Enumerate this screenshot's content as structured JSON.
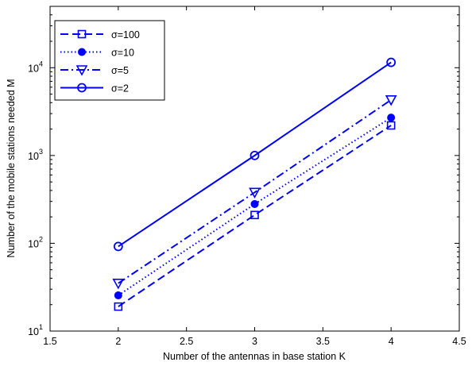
{
  "chart_data": {
    "type": "line",
    "title": "",
    "xlabel": "Number of the antennas in base station K",
    "ylabel": "Number of the mobile stations needed M",
    "xlim": [
      1.5,
      4.5
    ],
    "ylim": [
      10,
      50000
    ],
    "yscale": "log",
    "grid": false,
    "legend_position": "top-left",
    "x_ticks": [
      "1.5",
      "2",
      "2.5",
      "3",
      "3.5",
      "4",
      "4.5"
    ],
    "x_tick_values": [
      1.5,
      2,
      2.5,
      3,
      3.5,
      4,
      4.5
    ],
    "y_ticks": [
      {
        "base": "10",
        "exp": "1"
      },
      {
        "base": "10",
        "exp": "2"
      },
      {
        "base": "10",
        "exp": "3"
      },
      {
        "base": "10",
        "exp": "4"
      }
    ],
    "y_tick_values": [
      10,
      100,
      1000,
      10000
    ],
    "x": [
      2,
      3,
      4
    ],
    "series": [
      {
        "name": "σ=100",
        "values": [
          19,
          210,
          2200
        ],
        "color": "#0000ff",
        "line_style": "dashed",
        "marker": "square"
      },
      {
        "name": "σ=10",
        "values": [
          25.5,
          280,
          2700
        ],
        "color": "#0000ff",
        "line_style": "dotted",
        "marker": "filled-circle"
      },
      {
        "name": "σ=5",
        "values": [
          35,
          380,
          4300
        ],
        "color": "#0000ff",
        "line_style": "dash-dot",
        "marker": "triangle-down"
      },
      {
        "name": "σ=2",
        "values": [
          92,
          1000,
          11500
        ],
        "color": "#0000ff",
        "line_style": "solid",
        "marker": "circle"
      }
    ]
  }
}
